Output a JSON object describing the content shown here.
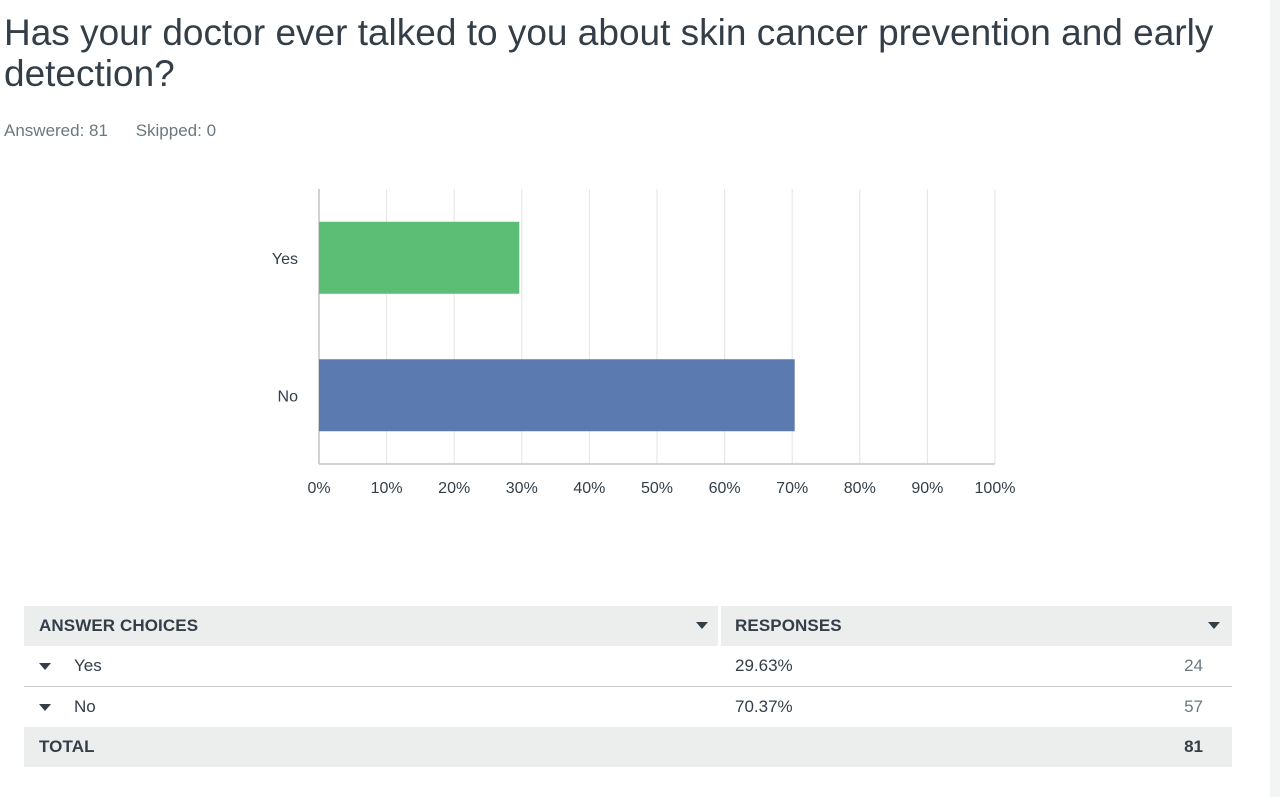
{
  "question": {
    "title": "Has your doctor ever talked to you about skin cancer prevention and early detection?",
    "answered": "Answered: 81",
    "skipped": "Skipped: 0"
  },
  "chart_data": {
    "type": "bar",
    "orientation": "horizontal",
    "categories": [
      "Yes",
      "No"
    ],
    "values": [
      29.63,
      70.37
    ],
    "colors": [
      "#5cbd74",
      "#5b7bb0"
    ],
    "xlim": [
      0,
      100
    ],
    "x_ticks": [
      "0%",
      "10%",
      "20%",
      "30%",
      "40%",
      "50%",
      "60%",
      "70%",
      "80%",
      "90%",
      "100%"
    ],
    "grid": true
  },
  "table": {
    "headers": {
      "choices": "ANSWER CHOICES",
      "responses": "RESPONSES"
    },
    "rows": [
      {
        "choice": "Yes",
        "percent": "29.63%",
        "count": "24"
      },
      {
        "choice": "No",
        "percent": "70.37%",
        "count": "57"
      }
    ],
    "total": {
      "label": "TOTAL",
      "count": "81"
    }
  }
}
